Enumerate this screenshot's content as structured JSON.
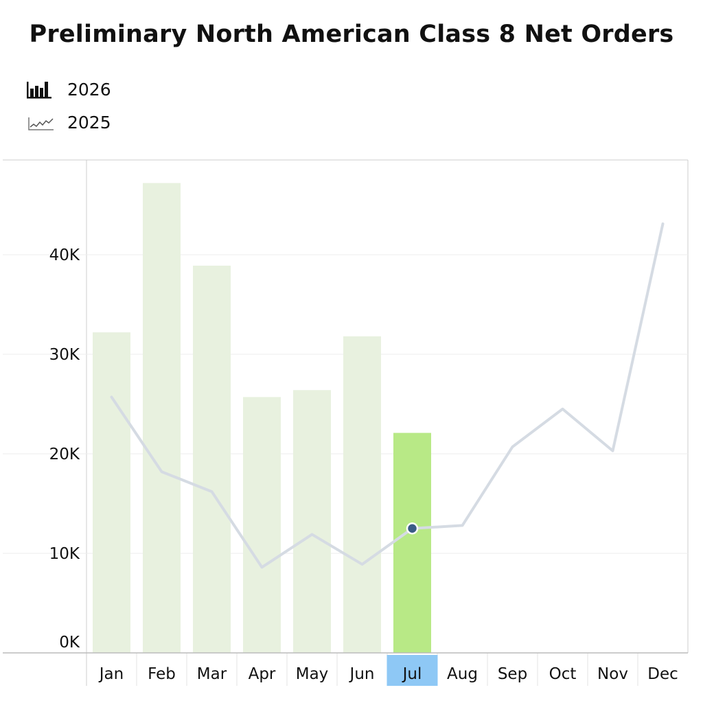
{
  "chart_data": {
    "type": "bar",
    "title": "Preliminary North American Class 8 Net Orders",
    "categories": [
      "Jan",
      "Feb",
      "Mar",
      "Apr",
      "May",
      "Jun",
      "Jul",
      "Aug",
      "Sep",
      "Oct",
      "Nov",
      "Dec"
    ],
    "yticks": [
      "0K",
      "10K",
      "20K",
      "30K",
      "40K"
    ],
    "ylim": [
      0,
      50000
    ],
    "grid": true,
    "legend_position": "top-left",
    "highlighted_category": "Jul",
    "series": [
      {
        "name": "2026",
        "type": "bar",
        "values": [
          32200,
          47200,
          38900,
          25700,
          26400,
          31800,
          22100,
          null,
          null,
          null,
          null,
          null
        ]
      },
      {
        "name": "2025",
        "type": "line",
        "values": [
          25700,
          18200,
          16200,
          8600,
          11900,
          8900,
          12500,
          12800,
          20700,
          24500,
          20300,
          43100
        ]
      }
    ],
    "colors": {
      "bar": "#e8f1df",
      "bar_highlight": "#b8e986",
      "line": "#d5dbe3",
      "marker": "#3a5c86",
      "highlight_band": "#8ec8f5",
      "grid": "#eeeeee",
      "axis": "#cccccc"
    }
  }
}
